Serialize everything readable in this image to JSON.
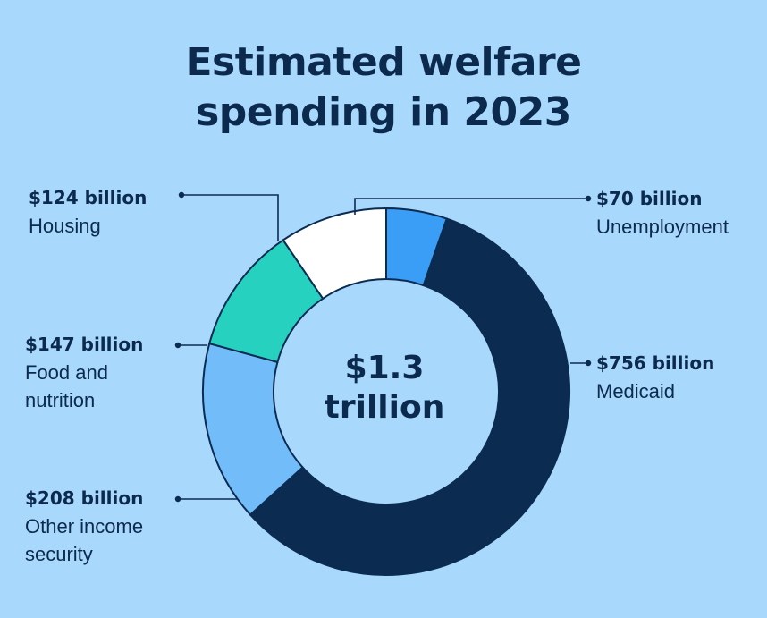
{
  "chart_data": {
    "type": "pie",
    "title": [
      "Estimated welfare",
      "spending in 2023"
    ],
    "center_label": [
      "$1.3",
      "trillion"
    ],
    "slices": [
      {
        "value_label": "$70 billion",
        "name": "Unemployment",
        "value": 70,
        "color": "#3a9ef6"
      },
      {
        "value_label": "$756 billion",
        "name": "Medicaid",
        "value": 756,
        "color": "#0b2b51"
      },
      {
        "value_label": "$208 billion",
        "name": "Other income\nsecurity",
        "value": 208,
        "color": "#72bcfa"
      },
      {
        "value_label": "$147 billion",
        "name": "Food and\nnutrition",
        "value": 147,
        "color": "#26d1c0"
      },
      {
        "value_label": "$124 billion",
        "name": "Housing",
        "value": 124,
        "color": "#ffffff"
      }
    ]
  }
}
